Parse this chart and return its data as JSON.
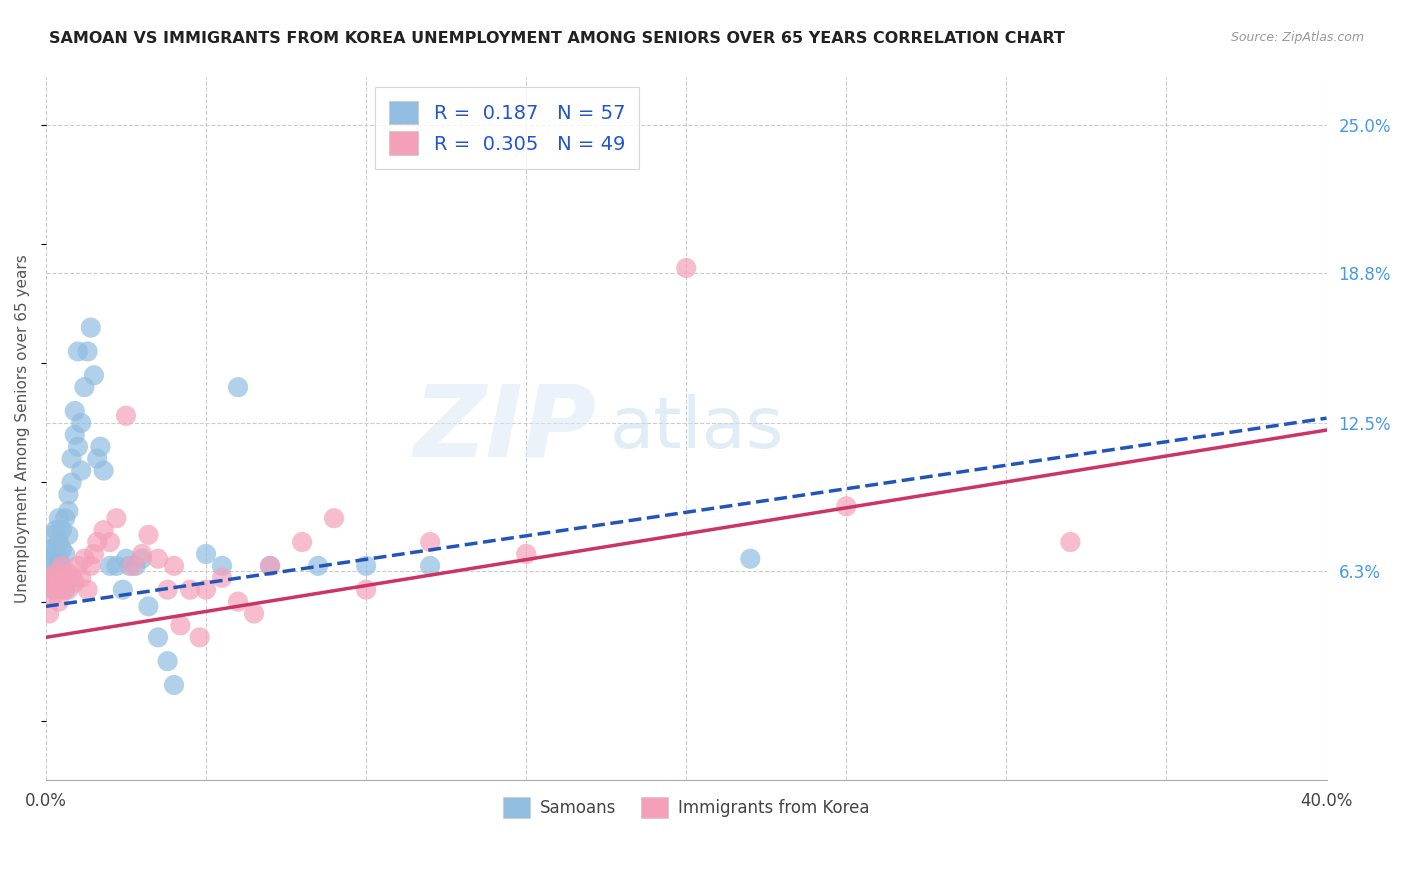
{
  "title": "SAMOAN VS IMMIGRANTS FROM KOREA UNEMPLOYMENT AMONG SENIORS OVER 65 YEARS CORRELATION CHART",
  "source": "Source: ZipAtlas.com",
  "ylabel": "Unemployment Among Seniors over 65 years",
  "yticks_right": [
    "25.0%",
    "18.8%",
    "12.5%",
    "6.3%"
  ],
  "yticks_right_vals": [
    0.25,
    0.188,
    0.125,
    0.063
  ],
  "color_samoan": "#90bde0",
  "color_korea": "#f4a0b8",
  "color_blue_line": "#2255bb",
  "color_pink_line": "#cc3366",
  "R_samoan": "0.187",
  "N_samoan": "57",
  "R_korea": "0.305",
  "N_korea": "49",
  "xlim": [
    0.0,
    0.4
  ],
  "ylim": [
    -0.025,
    0.27
  ],
  "figsize": [
    14.06,
    8.92
  ],
  "dpi": 100,
  "samoan_x": [
    0.001,
    0.001,
    0.001,
    0.002,
    0.002,
    0.002,
    0.002,
    0.003,
    0.003,
    0.003,
    0.003,
    0.004,
    0.004,
    0.004,
    0.005,
    0.005,
    0.005,
    0.006,
    0.006,
    0.006,
    0.007,
    0.007,
    0.007,
    0.008,
    0.008,
    0.009,
    0.009,
    0.01,
    0.01,
    0.011,
    0.011,
    0.012,
    0.013,
    0.014,
    0.015,
    0.016,
    0.017,
    0.018,
    0.02,
    0.022,
    0.024,
    0.025,
    0.026,
    0.028,
    0.03,
    0.032,
    0.035,
    0.038,
    0.04,
    0.05,
    0.055,
    0.06,
    0.07,
    0.085,
    0.1,
    0.12,
    0.22
  ],
  "samoan_y": [
    0.062,
    0.067,
    0.072,
    0.055,
    0.07,
    0.078,
    0.06,
    0.072,
    0.065,
    0.08,
    0.058,
    0.075,
    0.068,
    0.085,
    0.063,
    0.072,
    0.08,
    0.07,
    0.085,
    0.055,
    0.088,
    0.078,
    0.095,
    0.11,
    0.1,
    0.12,
    0.13,
    0.115,
    0.155,
    0.105,
    0.125,
    0.14,
    0.155,
    0.165,
    0.145,
    0.11,
    0.115,
    0.105,
    0.065,
    0.065,
    0.055,
    0.068,
    0.065,
    0.065,
    0.068,
    0.048,
    0.035,
    0.025,
    0.015,
    0.07,
    0.065,
    0.14,
    0.065,
    0.065,
    0.065,
    0.065,
    0.068
  ],
  "korea_x": [
    0.001,
    0.001,
    0.002,
    0.002,
    0.003,
    0.003,
    0.004,
    0.004,
    0.005,
    0.005,
    0.006,
    0.006,
    0.007,
    0.007,
    0.008,
    0.009,
    0.01,
    0.011,
    0.012,
    0.013,
    0.014,
    0.015,
    0.016,
    0.018,
    0.02,
    0.022,
    0.025,
    0.027,
    0.03,
    0.032,
    0.035,
    0.038,
    0.04,
    0.042,
    0.045,
    0.048,
    0.05,
    0.055,
    0.06,
    0.065,
    0.07,
    0.08,
    0.09,
    0.1,
    0.12,
    0.15,
    0.2,
    0.25,
    0.32
  ],
  "korea_y": [
    0.045,
    0.058,
    0.052,
    0.06,
    0.055,
    0.062,
    0.05,
    0.058,
    0.055,
    0.065,
    0.06,
    0.058,
    0.055,
    0.062,
    0.06,
    0.058,
    0.065,
    0.06,
    0.068,
    0.055,
    0.065,
    0.07,
    0.075,
    0.08,
    0.075,
    0.085,
    0.128,
    0.065,
    0.07,
    0.078,
    0.068,
    0.055,
    0.065,
    0.04,
    0.055,
    0.035,
    0.055,
    0.06,
    0.05,
    0.045,
    0.065,
    0.075,
    0.085,
    0.055,
    0.075,
    0.07,
    0.19,
    0.09,
    0.075
  ],
  "line_samoan_x0": 0.0,
  "line_samoan_y0": 0.048,
  "line_samoan_x1": 0.4,
  "line_samoan_y1": 0.127,
  "line_korea_x0": 0.0,
  "line_korea_y0": 0.035,
  "line_korea_x1": 0.4,
  "line_korea_y1": 0.122
}
